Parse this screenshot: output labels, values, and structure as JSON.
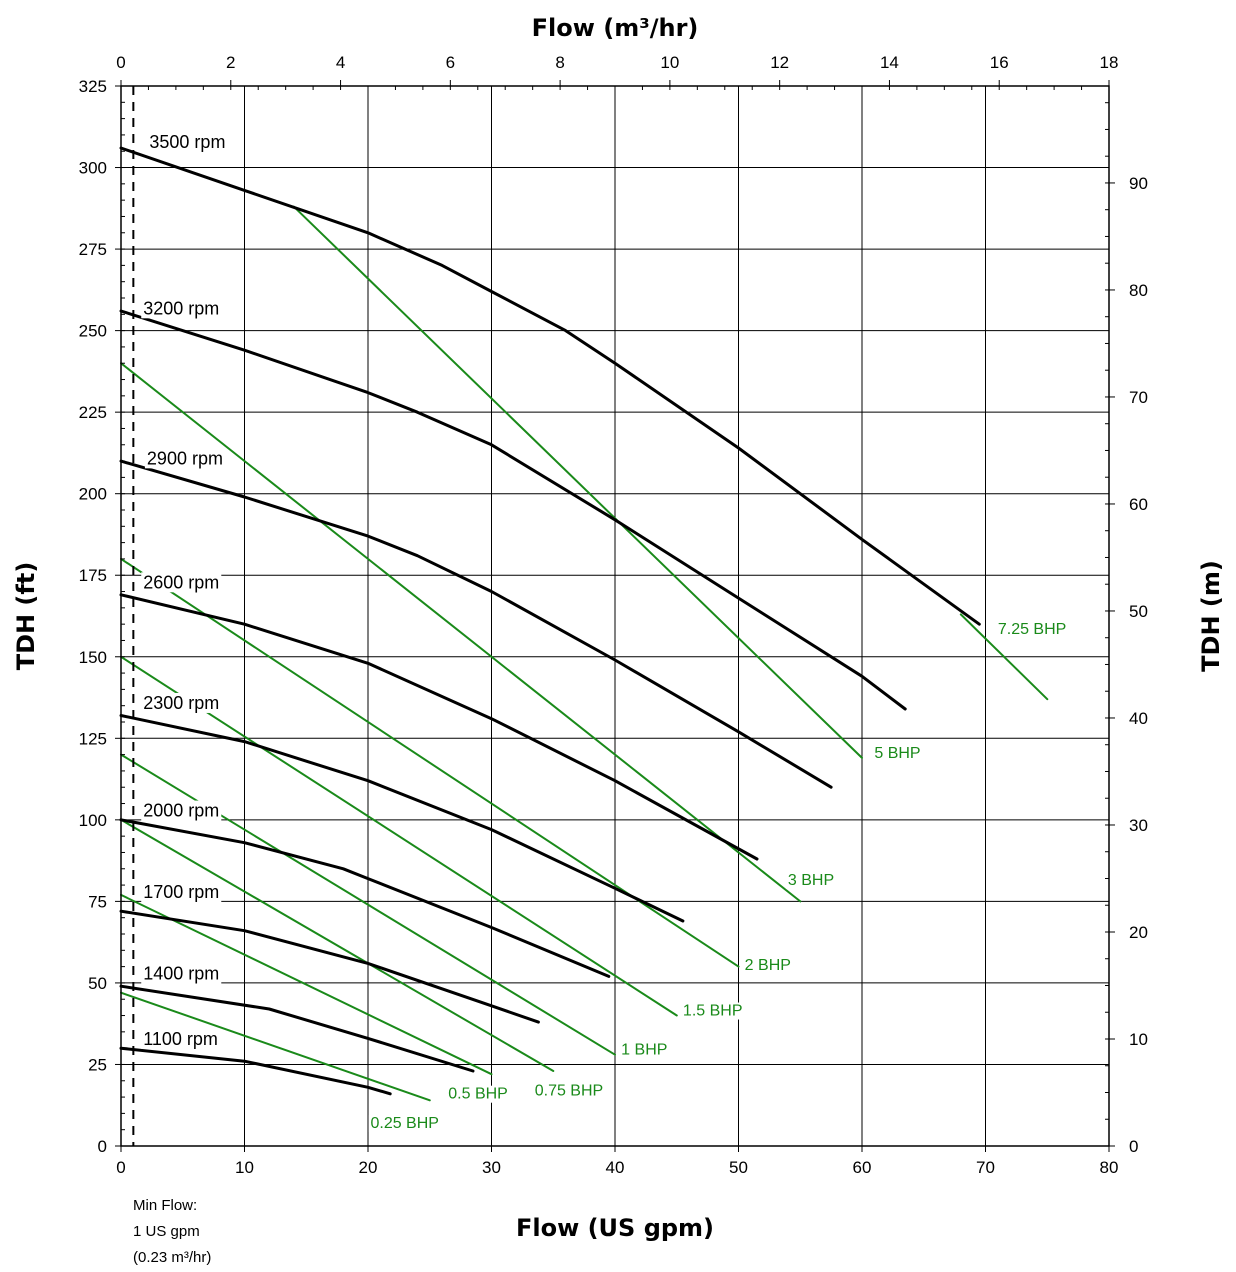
{
  "chart_data": {
    "type": "line",
    "xlabel": "Flow (US gpm)",
    "x2label": "Flow (m³/hr)",
    "ylabel": "TDH (ft)",
    "y2label": "TDH (m)",
    "xlim": [
      0,
      80
    ],
    "ylim": [
      0,
      325
    ],
    "x2lim": [
      0,
      18
    ],
    "y2lim": [
      0,
      99.06
    ],
    "x_ticks": [
      0,
      10,
      20,
      30,
      40,
      50,
      60,
      70,
      80
    ],
    "y_ticks": [
      0,
      25,
      50,
      75,
      100,
      125,
      150,
      175,
      200,
      225,
      250,
      275,
      300,
      325
    ],
    "x2_ticks": [
      0,
      2,
      4,
      6,
      8,
      10,
      12,
      14,
      16,
      18
    ],
    "y2_ticks": [
      0,
      10,
      20,
      30,
      40,
      50,
      60,
      70,
      80,
      90
    ],
    "grid": true,
    "min_flow": {
      "x": 1,
      "note_lines": [
        "Min Flow:",
        "1 US gpm",
        "(0.23 m³/hr)"
      ]
    },
    "colors": {
      "speed": "#000000",
      "power": "#1a8a1a",
      "grid": "#000000"
    },
    "series": [
      {
        "name": "3500 rpm",
        "kind": "speed",
        "label_at": [
          2.3,
          306
        ],
        "x": [
          0,
          10,
          20,
          26,
          30,
          36,
          40,
          50,
          60,
          69.5
        ],
        "y": [
          306,
          293,
          280,
          270,
          262,
          250,
          240,
          214,
          186,
          160
        ]
      },
      {
        "name": "3200 rpm",
        "kind": "speed",
        "label_at": [
          1.8,
          255
        ],
        "x": [
          0,
          10,
          20,
          24,
          30,
          40,
          50,
          60,
          63.5
        ],
        "y": [
          256,
          244,
          231,
          225,
          215,
          192,
          168,
          144,
          134
        ]
      },
      {
        "name": "2900 rpm",
        "kind": "speed",
        "label_at": [
          2.1,
          209
        ],
        "x": [
          0,
          10,
          20,
          24,
          30,
          40,
          50,
          57.5
        ],
        "y": [
          210,
          199,
          187,
          181,
          170,
          149,
          127,
          110
        ]
      },
      {
        "name": "2600 rpm",
        "kind": "speed",
        "label_at": [
          1.8,
          171
        ],
        "x": [
          0,
          10,
          20,
          30,
          40,
          51.5
        ],
        "y": [
          169,
          160,
          148,
          131,
          112,
          88
        ]
      },
      {
        "name": "2300 rpm",
        "kind": "speed",
        "label_at": [
          1.8,
          134
        ],
        "x": [
          0,
          10,
          20,
          30,
          40,
          45.5
        ],
        "y": [
          132,
          124,
          112,
          97,
          79,
          69
        ]
      },
      {
        "name": "2000 rpm",
        "kind": "speed",
        "label_at": [
          1.8,
          101
        ],
        "x": [
          0,
          10,
          18,
          20,
          30,
          39.5
        ],
        "y": [
          100,
          93,
          85,
          82,
          67,
          52
        ]
      },
      {
        "name": "1700 rpm",
        "kind": "speed",
        "label_at": [
          1.8,
          76
        ],
        "x": [
          0,
          10,
          20,
          30,
          33.8
        ],
        "y": [
          72,
          66,
          56,
          43,
          38
        ]
      },
      {
        "name": "1400 rpm",
        "kind": "speed",
        "label_at": [
          1.8,
          51
        ],
        "x": [
          0,
          12,
          20,
          28.5
        ],
        "y": [
          49,
          42,
          33,
          23
        ]
      },
      {
        "name": "1100 rpm",
        "kind": "speed",
        "label_at": [
          1.8,
          31
        ],
        "x": [
          0,
          10,
          20,
          21.8
        ],
        "y": [
          30,
          26,
          18,
          16
        ]
      },
      {
        "name": "7.25 BHP",
        "kind": "power",
        "label_at": [
          71,
          157
        ],
        "x": [
          68,
          75
        ],
        "y": [
          163,
          137
        ]
      },
      {
        "name": "5 BHP",
        "kind": "power",
        "label_at": [
          61,
          119
        ],
        "x": [
          14,
          60
        ],
        "y": [
          288,
          119
        ]
      },
      {
        "name": "3 BHP",
        "kind": "power",
        "label_at": [
          54,
          80
        ],
        "x": [
          0,
          55
        ],
        "y": [
          240,
          75
        ]
      },
      {
        "name": "2 BHP",
        "kind": "power",
        "label_at": [
          50.5,
          54
        ],
        "x": [
          0,
          50
        ],
        "y": [
          180,
          55
        ]
      },
      {
        "name": "1.5 BHP",
        "kind": "power",
        "label_at": [
          45.5,
          40
        ],
        "x": [
          0,
          45
        ],
        "y": [
          150,
          40
        ]
      },
      {
        "name": "1 BHP",
        "kind": "power",
        "label_at": [
          40.5,
          28
        ],
        "x": [
          0,
          40
        ],
        "y": [
          120,
          28
        ]
      },
      {
        "name": "0.75 BHP",
        "kind": "power",
        "label_at": [
          33.5,
          15.5
        ],
        "x": [
          0,
          35
        ],
        "y": [
          100,
          23
        ]
      },
      {
        "name": "0.5 BHP",
        "kind": "power",
        "label_at": [
          26.5,
          14.5
        ],
        "x": [
          0,
          30
        ],
        "y": [
          77,
          22
        ]
      },
      {
        "name": "0.25 BHP",
        "kind": "power",
        "label_at": [
          20.2,
          5.5
        ],
        "x": [
          0,
          25
        ],
        "y": [
          47,
          14
        ]
      }
    ]
  }
}
